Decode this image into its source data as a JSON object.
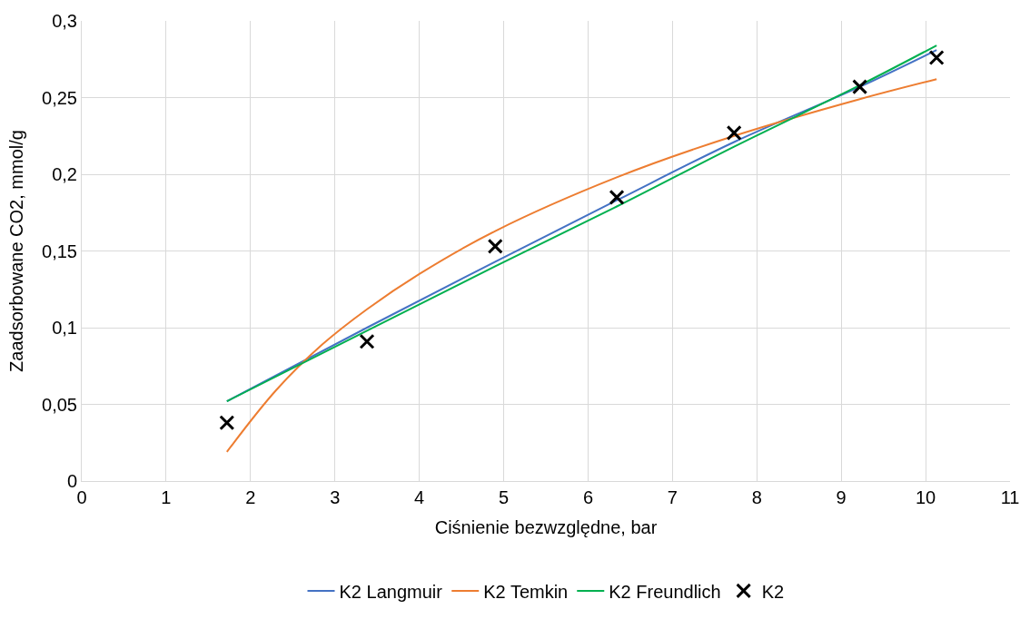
{
  "chart_data": {
    "type": "line",
    "xlabel": "Ciśnienie bezwzględne, bar",
    "ylabel": "Zaadsorbowane CO2, mmol/g",
    "xlim": [
      0,
      11
    ],
    "xticks": [
      0,
      1,
      2,
      3,
      4,
      5,
      6,
      7,
      8,
      9,
      10,
      11
    ],
    "ylim": [
      0,
      0.3
    ],
    "yticks": [
      {
        "value": 0,
        "label": "0"
      },
      {
        "value": 0.05,
        "label": "0,05"
      },
      {
        "value": 0.1,
        "label": "0,1"
      },
      {
        "value": 0.15,
        "label": "0,15"
      },
      {
        "value": 0.2,
        "label": "0,2"
      },
      {
        "value": 0.25,
        "label": "0,25"
      },
      {
        "value": 0.3,
        "label": "0,3"
      }
    ],
    "grid": true,
    "legend": "bottom",
    "series": [
      {
        "name": "K2 Langmuir",
        "color": "#4472c4",
        "x": [
          1.72,
          3.38,
          4.9,
          6.34,
          7.73,
          9.22,
          10.13
        ],
        "values": [
          0.052,
          0.1,
          0.143,
          0.183,
          0.221,
          0.257,
          0.281
        ]
      },
      {
        "name": "K2 Temkin",
        "color": "#ed7d31",
        "x": [
          1.72,
          2.3,
          2.85,
          3.38,
          4.0,
          4.9,
          6.34,
          7.73,
          9.22,
          10.13
        ],
        "values": [
          0.019,
          0.059,
          0.089,
          0.112,
          0.135,
          0.163,
          0.198,
          0.225,
          0.249,
          0.262
        ]
      },
      {
        "name": "K2 Freundlich",
        "color": "#00b050",
        "x": [
          1.72,
          3.38,
          4.9,
          6.34,
          7.73,
          9.22,
          10.13
        ],
        "values": [
          0.052,
          0.098,
          0.14,
          0.179,
          0.218,
          0.258,
          0.284
        ]
      },
      {
        "name": "K2",
        "type": "scatter",
        "color": "#000000",
        "marker": "cross",
        "x": [
          1.72,
          3.38,
          4.9,
          6.34,
          7.73,
          9.22,
          10.13
        ],
        "values": [
          0.038,
          0.091,
          0.153,
          0.185,
          0.227,
          0.257,
          0.276
        ]
      }
    ]
  }
}
